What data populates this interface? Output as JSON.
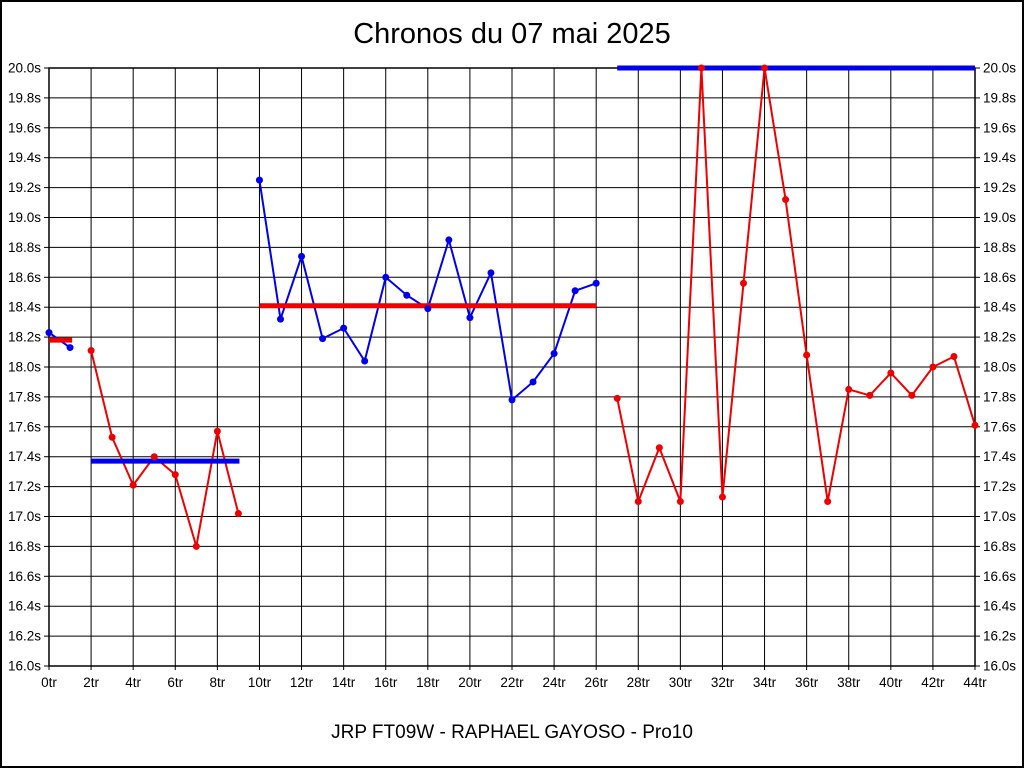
{
  "title": "Chronos du 07 mai 2025",
  "caption": "JRP FT09W - RAPHAEL GAYOSO - Pro10",
  "chart_data": {
    "type": "line",
    "title": "Chronos du 07 mai 2025",
    "caption": "JRP FT09W - RAPHAEL GAYOSO - Pro10",
    "x_unit": "tr",
    "y_unit": "s",
    "xlim": [
      0,
      44
    ],
    "ylim": [
      16.0,
      20.0
    ],
    "x_tick_step": 2,
    "y_tick_step": 0.2,
    "x_tick_labels": [
      "0tr",
      "2tr",
      "4tr",
      "6tr",
      "8tr",
      "10tr",
      "12tr",
      "14tr",
      "16tr",
      "18tr",
      "20tr",
      "22tr",
      "24tr",
      "26tr",
      "28tr",
      "30tr",
      "32tr",
      "34tr",
      "36tr",
      "38tr",
      "40tr",
      "42tr",
      "44tr"
    ],
    "y_tick_labels": [
      "16.0s",
      "16.2s",
      "16.4s",
      "16.6s",
      "16.8s",
      "17.0s",
      "17.2s",
      "17.4s",
      "17.6s",
      "17.8s",
      "18.0s",
      "18.2s",
      "18.4s",
      "18.6s",
      "18.8s",
      "19.0s",
      "19.2s",
      "19.4s",
      "19.6s",
      "19.8s",
      "20.0s"
    ],
    "grid": true,
    "y_axis_labels_side": "both",
    "legend": "none",
    "colors": {
      "blue_series": "#0000ee",
      "red_series": "#ee0000",
      "grid": "#000000",
      "background": "#ffffff"
    },
    "series": [
      {
        "name": "blue-laps",
        "color": "#0000ee",
        "segments": [
          {
            "x": [
              0,
              1
            ],
            "y": [
              18.23,
              18.13
            ]
          },
          {
            "x": [
              10,
              11,
              12,
              13,
              14,
              15,
              16,
              17,
              18,
              19,
              20,
              21,
              22,
              23,
              24,
              25,
              26
            ],
            "y": [
              19.25,
              18.32,
              18.74,
              18.19,
              18.26,
              18.04,
              18.6,
              18.48,
              18.39,
              18.85,
              18.33,
              18.63,
              17.78,
              17.9,
              18.09,
              18.51,
              18.56
            ]
          }
        ]
      },
      {
        "name": "red-laps",
        "color": "#ee0000",
        "segments": [
          {
            "x": [
              2,
              3,
              4,
              5,
              6,
              7,
              8,
              9
            ],
            "y": [
              18.11,
              17.53,
              17.21,
              17.4,
              17.28,
              16.8,
              17.57,
              17.02
            ]
          },
          {
            "x": [
              27,
              28,
              29,
              30,
              31,
              32,
              33,
              34,
              35,
              36,
              37,
              38,
              39,
              40,
              41,
              42,
              43,
              44
            ],
            "y": [
              17.79,
              17.1,
              17.46,
              17.1,
              20.0,
              17.13,
              18.56,
              20.0,
              19.12,
              18.08,
              17.1,
              17.85,
              17.81,
              17.96,
              17.81,
              18.0,
              18.07,
              17.61
            ]
          }
        ]
      }
    ],
    "average_lines": [
      {
        "name": "avg-segment-1",
        "color": "#ee0000",
        "y": 18.18,
        "x_from": 0,
        "x_to": 1.1
      },
      {
        "name": "avg-segment-2",
        "color": "#0000ee",
        "y": 17.37,
        "x_from": 2,
        "x_to": 9.05
      },
      {
        "name": "avg-segment-3",
        "color": "#ee0000",
        "y": 18.41,
        "x_from": 10,
        "x_to": 26
      },
      {
        "name": "avg-segment-4",
        "color": "#0000ee",
        "y": 20.0,
        "x_from": 27,
        "x_to": 44
      }
    ]
  }
}
